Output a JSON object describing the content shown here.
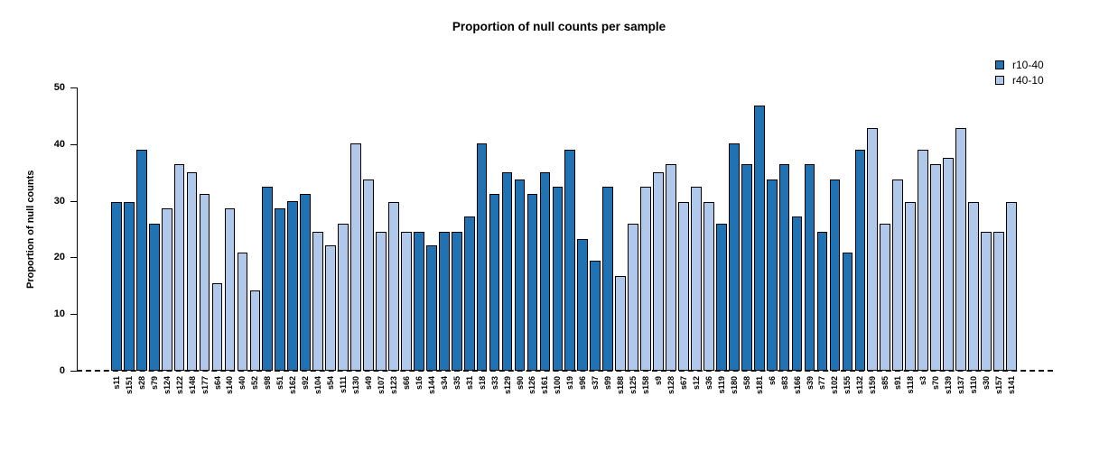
{
  "page": {
    "background": "#ffffff"
  },
  "chart_data": {
    "type": "bar",
    "title": "Proportion of null counts per sample",
    "xlabel": "",
    "ylabel": "Proportion of null counts",
    "ylim": [
      0,
      50
    ],
    "yticks": [
      0,
      10,
      20,
      30,
      40,
      50
    ],
    "grid": false,
    "zero_line": {
      "style": "dashed",
      "color": "#111111",
      "y": 0
    },
    "bar_border_color": "#000000",
    "legend": {
      "position": "top-right",
      "entries": [
        {
          "label": "r10-40",
          "color": "#2072B2"
        },
        {
          "label": "r40-10",
          "color": "#B0C8E9"
        }
      ]
    },
    "categories": [
      "s11",
      "s151",
      "s28",
      "s79",
      "s124",
      "s122",
      "s148",
      "s177",
      "s64",
      "s140",
      "s40",
      "s52",
      "s98",
      "s51",
      "s162",
      "s92",
      "s104",
      "s54",
      "s111",
      "s130",
      "s49",
      "s107",
      "s123",
      "s66",
      "s16",
      "s144",
      "s34",
      "s35",
      "s31",
      "s18",
      "s33",
      "s129",
      "s90",
      "s126",
      "s161",
      "s100",
      "s19",
      "s96",
      "s37",
      "s99",
      "s188",
      "s125",
      "s158",
      "s9",
      "s128",
      "s67",
      "s12",
      "s36",
      "s119",
      "s180",
      "s58",
      "s181",
      "s6",
      "s83",
      "s166",
      "s39",
      "s77",
      "s102",
      "s155",
      "s132",
      "s159",
      "s85",
      "s91",
      "s118",
      "s3",
      "s70",
      "s139",
      "s137",
      "s110",
      "s30",
      "s157",
      "s141"
    ],
    "values": [
      29.8,
      29.8,
      39.0,
      26.0,
      28.6,
      36.4,
      35.0,
      31.2,
      15.5,
      28.6,
      20.8,
      14.2,
      32.5,
      28.6,
      29.9,
      31.2,
      24.5,
      22.1,
      26.0,
      40.2,
      33.8,
      24.5,
      29.8,
      24.5,
      24.5,
      22.1,
      24.5,
      24.5,
      27.3,
      40.2,
      31.2,
      35.0,
      33.8,
      31.2,
      35.0,
      32.5,
      39.0,
      23.3,
      19.5,
      32.5,
      16.8,
      26.0,
      32.5,
      35.0,
      36.4,
      29.8,
      32.5,
      29.8,
      26.0,
      40.2,
      36.4,
      46.8,
      33.8,
      36.4,
      27.3,
      36.4,
      24.5,
      33.8,
      20.8,
      39.0,
      42.8,
      26.0,
      33.8,
      29.8,
      39.0,
      36.4,
      37.6,
      42.8,
      29.8,
      24.5,
      24.5,
      29.8
    ],
    "groups": [
      "r10-40",
      "r10-40",
      "r10-40",
      "r10-40",
      "r40-10",
      "r40-10",
      "r40-10",
      "r40-10",
      "r40-10",
      "r40-10",
      "r40-10",
      "r40-10",
      "r10-40",
      "r10-40",
      "r10-40",
      "r10-40",
      "r40-10",
      "r40-10",
      "r40-10",
      "r40-10",
      "r40-10",
      "r40-10",
      "r40-10",
      "r40-10",
      "r10-40",
      "r10-40",
      "r10-40",
      "r10-40",
      "r10-40",
      "r10-40",
      "r10-40",
      "r10-40",
      "r10-40",
      "r10-40",
      "r10-40",
      "r10-40",
      "r10-40",
      "r10-40",
      "r10-40",
      "r10-40",
      "r40-10",
      "r40-10",
      "r40-10",
      "r40-10",
      "r40-10",
      "r40-10",
      "r40-10",
      "r40-10",
      "r10-40",
      "r10-40",
      "r10-40",
      "r10-40",
      "r10-40",
      "r10-40",
      "r10-40",
      "r10-40",
      "r10-40",
      "r10-40",
      "r10-40",
      "r10-40",
      "r40-10",
      "r40-10",
      "r40-10",
      "r40-10",
      "r40-10",
      "r40-10",
      "r40-10",
      "r40-10",
      "r40-10",
      "r40-10",
      "r40-10",
      "r40-10"
    ]
  }
}
